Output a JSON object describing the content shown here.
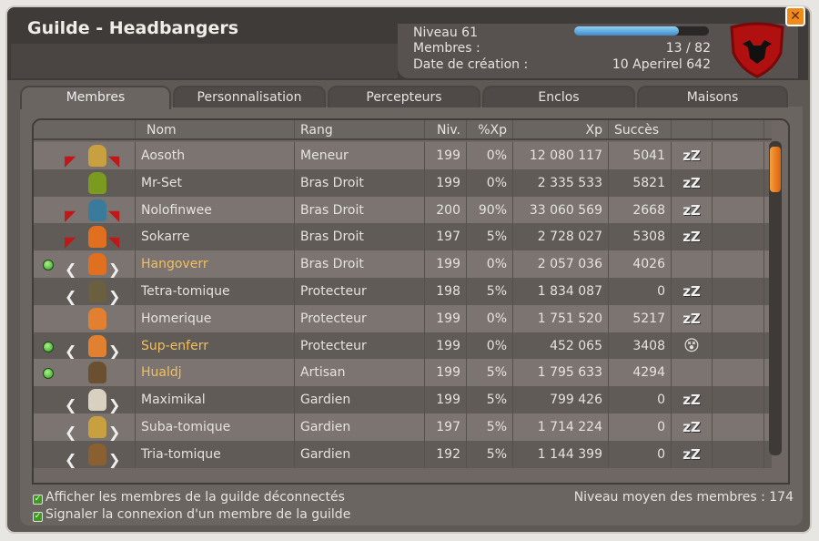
{
  "window": {
    "title": "Guilde - Headbangers",
    "close_icon": "close-icon"
  },
  "guild": {
    "level": "Niveau 61",
    "members_label": "Membres :",
    "members_value": "13 / 82",
    "created_label": "Date de création :",
    "created_value": "10 Aperirel 642",
    "xp_progress": 0.78,
    "emblem": "red-shield-emblem-icon"
  },
  "tabs": [
    {
      "label": "Membres",
      "active": true
    },
    {
      "label": "Personnalisation"
    },
    {
      "label": "Percepteurs"
    },
    {
      "label": "Enclos"
    },
    {
      "label": "Maisons"
    }
  ],
  "table": {
    "headers": {
      "name": "Nom",
      "rank": "Rang",
      "level": "Niv.",
      "xp_pct": "%Xp",
      "xp": "Xp",
      "success": "Succès"
    },
    "rows": [
      {
        "online": false,
        "wings": "red",
        "name": "Aosoth",
        "rank": "Meneur",
        "level": "199",
        "xp_pct": "0%",
        "xp": "12 080 117",
        "success": "5041",
        "status": "sleep",
        "avatar": "#c8a040"
      },
      {
        "online": false,
        "wings": "none",
        "name": "Mr-Set",
        "rank": "Bras Droit",
        "level": "199",
        "xp_pct": "0%",
        "xp": "2 335 533",
        "success": "5821",
        "status": "sleep",
        "avatar": "#7a9a20"
      },
      {
        "online": false,
        "wings": "red",
        "name": "Nolofinwee",
        "rank": "Bras Droit",
        "level": "200",
        "xp_pct": "90%",
        "xp": "33 060 569",
        "success": "2668",
        "status": "sleep",
        "avatar": "#3a7a9a"
      },
      {
        "online": false,
        "wings": "red",
        "name": "Sokarre",
        "rank": "Bras Droit",
        "level": "197",
        "xp_pct": "5%",
        "xp": "2 728 027",
        "success": "5308",
        "status": "sleep",
        "avatar": "#e07020"
      },
      {
        "online": true,
        "wings": "white",
        "name": "Hangoverr",
        "rank": "Bras Droit",
        "level": "199",
        "xp_pct": "0%",
        "xp": "2 057 036",
        "success": "4026",
        "status": "",
        "avatar": "#e07020"
      },
      {
        "online": false,
        "wings": "white",
        "name": "Tetra-tomique",
        "rank": "Protecteur",
        "level": "198",
        "xp_pct": "5%",
        "xp": "1 834 087",
        "success": "0",
        "status": "sleep",
        "avatar": "#6a6040"
      },
      {
        "online": false,
        "wings": "none",
        "name": "Homerique",
        "rank": "Protecteur",
        "level": "199",
        "xp_pct": "0%",
        "xp": "1 751 520",
        "success": "5217",
        "status": "sleep",
        "avatar": "#e08030"
      },
      {
        "online": true,
        "wings": "white",
        "name": "Sup-enferr",
        "rank": "Protecteur",
        "level": "199",
        "xp_pct": "0%",
        "xp": "452 065",
        "success": "3408",
        "status": "smiley",
        "avatar": "#e08030"
      },
      {
        "online": true,
        "wings": "none",
        "name": "Hualdj",
        "rank": "Artisan",
        "level": "199",
        "xp_pct": "5%",
        "xp": "1 795 633",
        "success": "4294",
        "status": "",
        "avatar": "#6a5030"
      },
      {
        "online": false,
        "wings": "white",
        "name": "Maximikal",
        "rank": "Gardien",
        "level": "199",
        "xp_pct": "5%",
        "xp": "799 426",
        "success": "0",
        "status": "sleep",
        "avatar": "#d8d0c0"
      },
      {
        "online": false,
        "wings": "white",
        "name": "Suba-tomique",
        "rank": "Gardien",
        "level": "197",
        "xp_pct": "5%",
        "xp": "1 714 224",
        "success": "0",
        "status": "sleep",
        "avatar": "#c8a040"
      },
      {
        "online": false,
        "wings": "white",
        "name": "Tria-tomique",
        "rank": "Gardien",
        "level": "192",
        "xp_pct": "5%",
        "xp": "1 144 399",
        "success": "0",
        "status": "sleep",
        "avatar": "#8a6030"
      }
    ]
  },
  "footer": {
    "show_offline": "Afficher les membres de la guilde déconnectés",
    "notify_login": "Signaler la connexion d'un membre de la guilde",
    "avg_level": "Niveau moyen des membres : 174"
  }
}
